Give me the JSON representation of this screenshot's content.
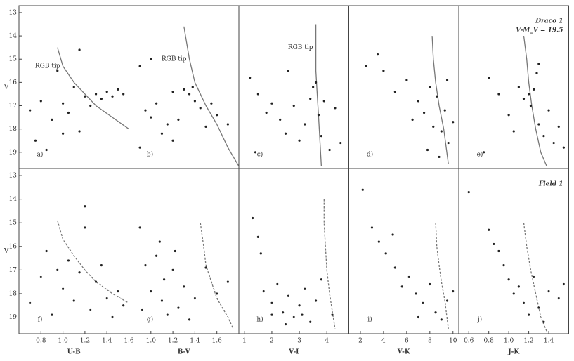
{
  "chart_data": [
    {
      "type": "scatter",
      "panel_label": "a)",
      "y_label": "V",
      "tip_label": "RGB tip",
      "xlim": [
        0.6,
        1.6
      ],
      "ylim": [
        12.7,
        19.7
      ],
      "yticks": [
        13,
        14,
        15,
        16,
        17,
        18,
        19
      ],
      "line": {
        "x": [
          0.95,
          1.0,
          1.1,
          1.2,
          1.3,
          1.45,
          1.6
        ],
        "y": [
          14.5,
          15.3,
          16,
          16.5,
          17,
          17.5,
          18
        ]
      },
      "points": {
        "x": [
          0.7,
          0.75,
          0.8,
          0.9,
          0.95,
          1.0,
          1.05,
          1.1,
          1.15,
          1.2,
          1.25,
          1.3,
          1.35,
          1.4,
          1.45,
          1.5,
          1.55,
          1.15,
          0.85,
          1.0
        ],
        "y": [
          17.2,
          18.5,
          16.8,
          17.6,
          15.5,
          16.9,
          17.3,
          16.2,
          18.1,
          16.6,
          17.0,
          16.5,
          16.7,
          16.4,
          16.6,
          16.3,
          16.5,
          14.6,
          18.9,
          18.2
        ]
      }
    },
    {
      "type": "scatter",
      "panel_label": "b)",
      "tip_label": "RGB tip",
      "xlim": [
        0.8,
        1.8
      ],
      "ylim": [
        12.7,
        19.7
      ],
      "line": {
        "x": [
          1.3,
          1.35,
          1.4,
          1.5,
          1.6,
          1.7,
          1.8
        ],
        "y": [
          13.6,
          15,
          16,
          17,
          17.8,
          18.8,
          19.6
        ]
      },
      "points": {
        "x": [
          0.9,
          0.95,
          1.0,
          1.05,
          1.1,
          1.15,
          1.2,
          1.25,
          1.3,
          1.35,
          1.38,
          1.4,
          1.45,
          1.5,
          1.55,
          1.6,
          1.7,
          1.0,
          1.2,
          0.9
        ],
        "y": [
          18.8,
          17.2,
          17.5,
          16.9,
          18.2,
          17.8,
          16.4,
          17.6,
          16.3,
          16.5,
          16.2,
          16.8,
          17.1,
          17.9,
          16.9,
          17.4,
          17.8,
          15.0,
          18.5,
          15.3
        ]
      }
    },
    {
      "type": "scatter",
      "panel_label": "c)",
      "tip_label": "RGB tip",
      "xlim": [
        0.8,
        4.8
      ],
      "ylim": [
        12.7,
        19.7
      ],
      "line": {
        "x": [
          3.6,
          3.6,
          3.6,
          3.65,
          3.7,
          3.8
        ],
        "y": [
          13.5,
          14.5,
          15.5,
          16.5,
          17.5,
          19.6
        ]
      },
      "points": {
        "x": [
          1.2,
          1.5,
          1.8,
          2.0,
          2.3,
          2.5,
          2.8,
          3.0,
          3.2,
          3.4,
          3.5,
          3.6,
          3.7,
          3.8,
          3.9,
          4.1,
          4.3,
          4.5,
          1.4,
          2.6
        ],
        "y": [
          15.8,
          16.5,
          17.3,
          16.9,
          17.6,
          18.2,
          17.0,
          18.5,
          17.8,
          16.7,
          16.2,
          16.0,
          17.4,
          18.3,
          16.8,
          18.9,
          17.1,
          18.6,
          19.0,
          15.5
        ]
      }
    },
    {
      "type": "scatter",
      "panel_label": "d)",
      "xlim": [
        1,
        10.5
      ],
      "ylim": [
        12.7,
        19.7
      ],
      "line": {
        "x": [
          8.2,
          8.3,
          8.5,
          8.8,
          9.2,
          9.6
        ],
        "y": [
          14,
          15,
          16,
          17,
          18,
          19.5
        ]
      },
      "points": {
        "x": [
          2.5,
          3.5,
          4,
          5,
          6,
          6.5,
          7,
          7.5,
          8,
          8.3,
          8.6,
          9,
          9.3,
          9.6,
          10,
          7.8,
          8.8,
          9.5
        ],
        "y": [
          15.3,
          14.8,
          15.5,
          16.4,
          15.9,
          17.6,
          16.8,
          17.3,
          16.2,
          17.9,
          16.6,
          18.1,
          17.2,
          18.6,
          17.7,
          18.9,
          19.2,
          15.9
        ]
      }
    },
    {
      "type": "scatter",
      "panel_label": "e)",
      "notes": [
        "Draco 1",
        "V-M_V = 19.5"
      ],
      "xlim": [
        0.5,
        1.6
      ],
      "ylim": [
        12.7,
        19.7
      ],
      "line": {
        "x": [
          1.15,
          1.18,
          1.2,
          1.23,
          1.27,
          1.32,
          1.38
        ],
        "y": [
          14,
          15,
          16,
          17,
          18,
          19,
          19.6
        ]
      },
      "points": {
        "x": [
          0.8,
          0.9,
          1.0,
          1.05,
          1.1,
          1.15,
          1.2,
          1.22,
          1.25,
          1.28,
          1.3,
          1.35,
          1.4,
          1.45,
          1.5,
          1.55,
          0.75,
          1.3
        ],
        "y": [
          15.8,
          16.5,
          17.4,
          18.1,
          16.2,
          16.7,
          16.5,
          17.0,
          16.3,
          15.6,
          17.8,
          18.3,
          17.2,
          18.6,
          17.9,
          18.8,
          19.0,
          15.2
        ]
      }
    },
    {
      "type": "scatter",
      "panel_label": "f)",
      "y_label": "V",
      "x_label": "U-B",
      "xlim": [
        0.6,
        1.6
      ],
      "ylim": [
        12.7,
        19.7
      ],
      "yticks": [
        13,
        14,
        15,
        16,
        17,
        18,
        19
      ],
      "xticks": [
        0.8,
        {
          "value": 1,
          "label": "1.0"
        },
        1.2,
        1.4,
        1.6
      ],
      "line": {
        "x": [
          0.95,
          1.0,
          1.1,
          1.2,
          1.3,
          1.45,
          1.6
        ],
        "y": [
          14.9,
          15.7,
          16.4,
          17,
          17.5,
          18,
          18.4
        ]
      },
      "points": {
        "x": [
          0.7,
          0.8,
          0.85,
          0.9,
          1.0,
          1.05,
          1.1,
          1.15,
          1.2,
          1.25,
          1.3,
          1.35,
          1.4,
          1.45,
          1.5,
          1.55,
          1.2,
          0.95
        ],
        "y": [
          18.4,
          17.3,
          16.2,
          18.9,
          17.8,
          16.6,
          18.3,
          17.1,
          15.2,
          18.7,
          17.5,
          16.8,
          18.2,
          19.0,
          17.9,
          18.5,
          14.3,
          17.0
        ]
      }
    },
    {
      "type": "scatter",
      "panel_label": "g)",
      "x_label": "B-V",
      "xlim": [
        0.8,
        1.8
      ],
      "ylim": [
        12.7,
        19.7
      ],
      "xticks": [
        {
          "value": 1,
          "label": "1.0"
        },
        1.2,
        1.4,
        1.6
      ],
      "line": {
        "x": [
          1.45,
          1.48,
          1.5,
          1.55,
          1.6,
          1.7,
          1.75
        ],
        "y": [
          15,
          16,
          16.8,
          17.5,
          18.2,
          19,
          19.5
        ]
      },
      "points": {
        "x": [
          0.9,
          0.95,
          1.0,
          1.05,
          1.1,
          1.12,
          1.15,
          1.2,
          1.25,
          1.3,
          1.35,
          1.4,
          1.5,
          1.6,
          1.7,
          0.92,
          1.08,
          1.22
        ],
        "y": [
          15.2,
          16.8,
          17.9,
          16.4,
          18.3,
          17.4,
          18.9,
          17.0,
          18.6,
          17.7,
          19.1,
          18.2,
          16.9,
          18.0,
          17.5,
          18.7,
          15.8,
          16.2
        ]
      }
    },
    {
      "type": "scatter",
      "panel_label": "h)",
      "x_label": "V-I",
      "xlim": [
        0.8,
        4.8
      ],
      "ylim": [
        12.7,
        19.7
      ],
      "xticks": [
        1,
        2,
        3,
        4
      ],
      "line": {
        "x": [
          3.9,
          3.9,
          3.95,
          4.0,
          4.1,
          4.3
        ],
        "y": [
          14,
          15,
          16,
          17,
          18,
          19.5
        ]
      },
      "points": {
        "x": [
          1.3,
          1.5,
          1.7,
          2.0,
          2.2,
          2.4,
          2.6,
          2.8,
          3.0,
          3.2,
          3.4,
          3.6,
          3.8,
          4.2,
          1.6,
          2.5,
          3.1,
          2.0
        ],
        "y": [
          14.8,
          15.6,
          17.9,
          18.4,
          17.6,
          18.8,
          18.1,
          19.0,
          18.5,
          17.8,
          19.2,
          18.3,
          17.4,
          18.9,
          16.3,
          19.3,
          18.9,
          18.9
        ]
      }
    },
    {
      "type": "scatter",
      "panel_label": "i)",
      "x_label": "V-K",
      "xlim": [
        1,
        10.5
      ],
      "ylim": [
        12.7,
        19.7
      ],
      "xticks": [
        2,
        4,
        6,
        8,
        10
      ],
      "line": {
        "x": [
          8.5,
          8.6,
          8.8,
          9.0,
          9.3,
          9.6
        ],
        "y": [
          15,
          16,
          16.8,
          17.5,
          18.3,
          19.5
        ]
      },
      "points": {
        "x": [
          2.2,
          3,
          3.6,
          4.2,
          5,
          5.6,
          6.2,
          6.8,
          7.4,
          8,
          8.5,
          9,
          9.5,
          10,
          4.8,
          7.0
        ],
        "y": [
          13.6,
          15.2,
          15.8,
          16.3,
          16.9,
          17.7,
          17.3,
          18.0,
          18.4,
          17.6,
          18.8,
          19.1,
          18.3,
          17.9,
          15.5,
          19.0
        ]
      }
    },
    {
      "type": "scatter",
      "panel_label": "j)",
      "x_label": "J-K",
      "notes": [
        "Field 1"
      ],
      "xlim": [
        0.5,
        1.6
      ],
      "ylim": [
        12.7,
        19.7
      ],
      "xticks": [
        0.6,
        0.8,
        {
          "value": 1,
          "label": "1.0"
        },
        1.2,
        1.4
      ],
      "line": {
        "x": [
          1.15,
          1.18,
          1.22,
          1.27,
          1.32,
          1.38
        ],
        "y": [
          15,
          16,
          17,
          18,
          19,
          19.6
        ]
      },
      "points": {
        "x": [
          0.6,
          0.8,
          0.9,
          0.95,
          1.0,
          1.05,
          1.1,
          1.15,
          1.2,
          1.25,
          1.3,
          1.35,
          1.4,
          1.5,
          1.55,
          0.85
        ],
        "y": [
          13.7,
          15.3,
          16.2,
          16.8,
          17.4,
          18.0,
          17.7,
          18.4,
          18.9,
          17.3,
          18.6,
          19.2,
          17.9,
          18.2,
          17.6,
          15.9
        ]
      }
    }
  ]
}
